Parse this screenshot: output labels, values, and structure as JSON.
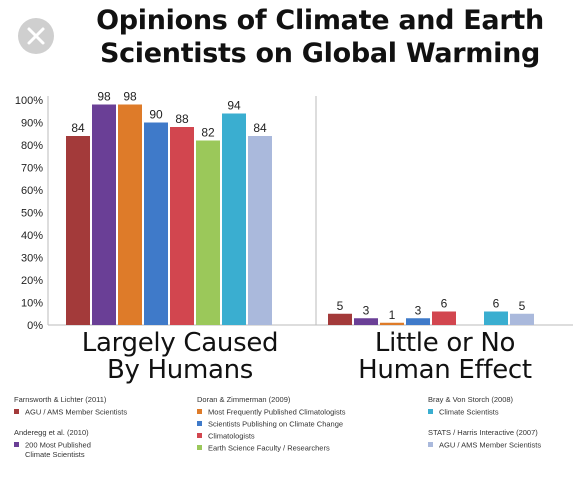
{
  "close_button": {
    "icon": "close-icon"
  },
  "chart_data": {
    "type": "bar",
    "title": "Opinions of Climate and Earth Scientists on Global Warming",
    "title_lines": [
      "Opinions of Climate and Earth",
      "Scientists on Global Warming"
    ],
    "ylim": [
      0,
      100
    ],
    "yticks": [
      "0%",
      "10%",
      "20%",
      "30%",
      "40%",
      "50%",
      "60%",
      "70%",
      "80%",
      "90%",
      "100%"
    ],
    "groups": [
      {
        "label_lines": [
          "Largely Caused",
          "By Humans"
        ]
      },
      {
        "label_lines": [
          "Little or No",
          "Human Effect"
        ]
      }
    ],
    "series": [
      {
        "name": "AGU / AMS Member Scientists",
        "color": "#a33a3a",
        "values": [
          84,
          5
        ]
      },
      {
        "name": "200 Most Published Climate Scientists",
        "color": "#6a3f96",
        "values": [
          98,
          3
        ]
      },
      {
        "name": "Most Frequently Published Climatologists",
        "color": "#de7b29",
        "values": [
          98,
          1
        ]
      },
      {
        "name": "Scientists Publishing on Climate Change",
        "color": "#3f7ac9",
        "values": [
          90,
          3
        ]
      },
      {
        "name": "Climatologists",
        "color": "#d2464f",
        "values": [
          88,
          6
        ]
      },
      {
        "name": "Earth Science Faculty / Researchers",
        "color": "#9bc85a",
        "values": [
          82,
          null
        ]
      },
      {
        "name": "Climate Scientists",
        "color": "#3aaed0",
        "values": [
          94,
          6
        ]
      },
      {
        "name": "AGU / AMS Member Scientists",
        "color": "#aab9dc",
        "values": [
          84,
          5
        ]
      }
    ],
    "legend": {
      "columns": [
        [
          {
            "source": "Farnsworth & Lichter (2011)",
            "items": [
              {
                "series": 0,
                "lines": [
                  "AGU / AMS Member Scientists"
                ]
              }
            ]
          },
          {
            "source": "Anderegg et al. (2010)",
            "items": [
              {
                "series": 1,
                "lines": [
                  "200 Most Published",
                  "Climate Scientists"
                ]
              }
            ]
          }
        ],
        [
          {
            "source": "Doran & Zimmerman (2009)",
            "items": [
              {
                "series": 2,
                "lines": [
                  "Most Frequently Published Climatologists"
                ]
              },
              {
                "series": 3,
                "lines": [
                  "Scientists Publishing on Climate Change"
                ]
              },
              {
                "series": 4,
                "lines": [
                  "Climatologists"
                ]
              },
              {
                "series": 5,
                "lines": [
                  "Earth Science Faculty / Researchers"
                ]
              }
            ]
          }
        ],
        [
          {
            "source": "Bray & Von Storch (2008)",
            "items": [
              {
                "series": 6,
                "lines": [
                  "Climate Scientists"
                ]
              }
            ]
          },
          {
            "source": "STATS / Harris Interactive (2007)",
            "items": [
              {
                "series": 7,
                "lines": [
                  "AGU / AMS Member Scientists"
                ]
              }
            ]
          }
        ]
      ]
    }
  }
}
